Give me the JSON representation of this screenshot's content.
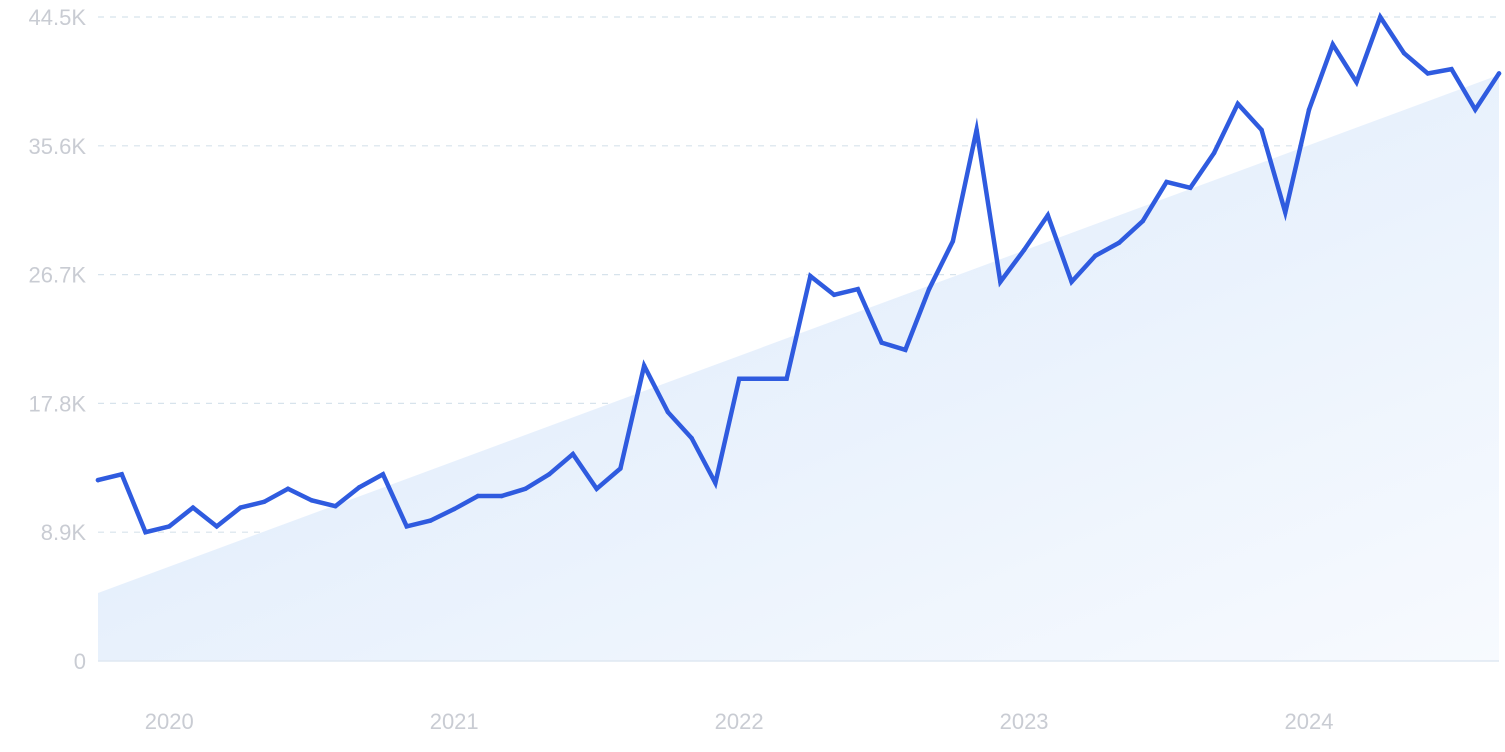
{
  "chart_data": {
    "type": "line",
    "title": "",
    "xlabel": "",
    "ylabel": "",
    "ylim": [
      0,
      44.5
    ],
    "y_ticks": [
      "0",
      "8.9K",
      "17.8K",
      "26.7K",
      "35.6K",
      "44.5K"
    ],
    "y_tick_values": [
      0,
      8.9,
      17.8,
      26.7,
      35.6,
      44.5
    ],
    "x_ticks": [
      "2020",
      "2021",
      "2022",
      "2023",
      "2024"
    ],
    "x_tick_values": [
      "2020-01",
      "2021-01",
      "2022-01",
      "2023-01",
      "2024-01"
    ],
    "x_range": [
      "2019-10",
      "2024-09"
    ],
    "grid": true,
    "legend": "none",
    "colors": {
      "line": "#2f5bdf",
      "trend_fill_top": "#d9e8fb",
      "trend_fill_bottom": "#f7fafe",
      "grid": "#d7e3ec",
      "tick_text": "#c9ccd3"
    },
    "trend": {
      "x": [
        "2019-10",
        "2024-09"
      ],
      "y": [
        4.7,
        40.5
      ]
    },
    "series": [
      {
        "x": [
          "2019-10",
          "2019-11",
          "2019-12",
          "2020-01",
          "2020-02",
          "2020-03",
          "2020-04",
          "2020-05",
          "2020-06",
          "2020-07",
          "2020-08",
          "2020-09",
          "2020-10",
          "2020-11",
          "2020-12",
          "2021-01",
          "2021-02",
          "2021-03",
          "2021-04",
          "2021-05",
          "2021-06",
          "2021-07",
          "2021-08",
          "2021-09",
          "2021-10",
          "2021-11",
          "2021-12",
          "2022-01",
          "2022-02",
          "2022-03",
          "2022-04",
          "2022-05",
          "2022-06",
          "2022-07",
          "2022-08",
          "2022-09",
          "2022-10",
          "2022-11",
          "2022-12",
          "2023-01",
          "2023-02",
          "2023-03",
          "2023-04",
          "2023-05",
          "2023-06",
          "2023-07",
          "2023-08",
          "2023-09",
          "2023-10",
          "2023-11",
          "2023-12",
          "2024-01",
          "2024-02",
          "2024-03",
          "2024-04",
          "2024-05",
          "2024-06",
          "2024-07",
          "2024-08",
          "2024-09"
        ],
        "values": [
          12.5,
          12.9,
          8.9,
          9.3,
          10.6,
          9.3,
          10.6,
          11.0,
          11.9,
          11.1,
          10.7,
          12.0,
          12.9,
          9.3,
          9.7,
          10.5,
          11.4,
          11.4,
          11.9,
          12.9,
          14.3,
          11.9,
          13.3,
          20.4,
          17.2,
          15.4,
          12.3,
          19.5,
          19.5,
          19.5,
          26.6,
          25.3,
          25.7,
          22.0,
          21.5,
          25.7,
          29.0,
          36.7,
          26.2,
          28.4,
          30.8,
          26.2,
          28.0,
          28.9,
          30.4,
          33.1,
          32.7,
          35.1,
          38.5,
          36.7,
          31.0,
          38.1,
          42.6,
          40.0,
          44.5,
          42.0,
          40.6,
          40.9,
          38.1,
          40.6
        ]
      }
    ]
  }
}
